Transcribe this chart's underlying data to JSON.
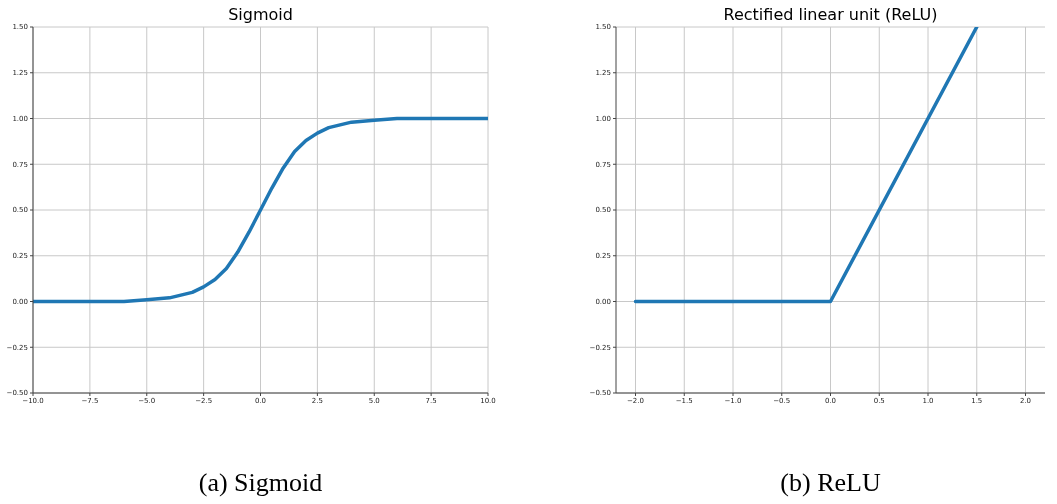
{
  "chart_data": [
    {
      "type": "line",
      "title": "Sigmoid",
      "annotations": [
        "(a) Sigmoid"
      ],
      "grid": true,
      "series": [
        {
          "color": "#1f77b4",
          "x": [
            -10,
            -8,
            -6,
            -5,
            -4,
            -3,
            -2.5,
            -2,
            -1.5,
            -1,
            -0.5,
            0,
            0.5,
            1,
            1.5,
            2,
            2.5,
            3,
            4,
            5,
            6,
            8,
            10
          ],
          "values": [
            0,
            0,
            0,
            0.01,
            0.02,
            0.05,
            0.08,
            0.12,
            0.18,
            0.27,
            0.38,
            0.5,
            0.62,
            0.73,
            0.82,
            0.88,
            0.92,
            0.95,
            0.98,
            0.99,
            1,
            1,
            1
          ]
        }
      ],
      "xlim": [
        -10,
        10
      ],
      "xticks": [
        {
          "value": -10,
          "label": "−10.0"
        },
        {
          "value": -7.5,
          "label": "−7.5"
        },
        {
          "value": -5,
          "label": "−5.0"
        },
        {
          "value": -2.5,
          "label": "−2.5"
        },
        {
          "value": 0,
          "label": "0.0"
        },
        {
          "value": 2.5,
          "label": "2.5"
        },
        {
          "value": 5,
          "label": "5.0"
        },
        {
          "value": 7.5,
          "label": "7.5"
        },
        {
          "value": 10,
          "label": "10.0"
        }
      ],
      "ylim": [
        -0.5,
        1.5
      ],
      "yticks": [
        {
          "value": -0.5,
          "label": "−0.50"
        },
        {
          "value": -0.25,
          "label": "−0.25"
        },
        {
          "value": 0,
          "label": "0.00"
        },
        {
          "value": 0.25,
          "label": "0.25"
        },
        {
          "value": 0.5,
          "label": "0.50"
        },
        {
          "value": 0.75,
          "label": "0.75"
        },
        {
          "value": 1,
          "label": "1.00"
        },
        {
          "value": 1.25,
          "label": "1.25"
        },
        {
          "value": 1.5,
          "label": "1.50"
        }
      ]
    },
    {
      "type": "line",
      "title": "Rectified linear unit (ReLU)",
      "annotations": [
        "(b) ReLU"
      ],
      "grid": true,
      "series": [
        {
          "color": "#1f77b4",
          "x": [
            -2,
            0,
            1.5
          ],
          "values": [
            0,
            0,
            1.5
          ]
        }
      ],
      "xlim": [
        -2.2,
        2.2
      ],
      "xticks": [
        {
          "value": -2,
          "label": "−2.0"
        },
        {
          "value": -1.5,
          "label": "−1.5"
        },
        {
          "value": -1,
          "label": "−1.0"
        },
        {
          "value": -0.5,
          "label": "−0.5"
        },
        {
          "value": 0,
          "label": "0.0"
        },
        {
          "value": 0.5,
          "label": "0.5"
        },
        {
          "value": 1,
          "label": "1.0"
        },
        {
          "value": 1.5,
          "label": "1.5"
        },
        {
          "value": 2,
          "label": "2.0"
        }
      ],
      "ylim": [
        -0.5,
        1.5
      ],
      "yticks": [
        {
          "value": -0.5,
          "label": "−0.50"
        },
        {
          "value": -0.25,
          "label": "−0.25"
        },
        {
          "value": 0,
          "label": "0.00"
        },
        {
          "value": 0.25,
          "label": "0.25"
        },
        {
          "value": 0.5,
          "label": "0.50"
        },
        {
          "value": 0.75,
          "label": "0.75"
        },
        {
          "value": 1,
          "label": "1.00"
        },
        {
          "value": 1.25,
          "label": "1.25"
        },
        {
          "value": 1.5,
          "label": "1.50"
        }
      ]
    }
  ]
}
